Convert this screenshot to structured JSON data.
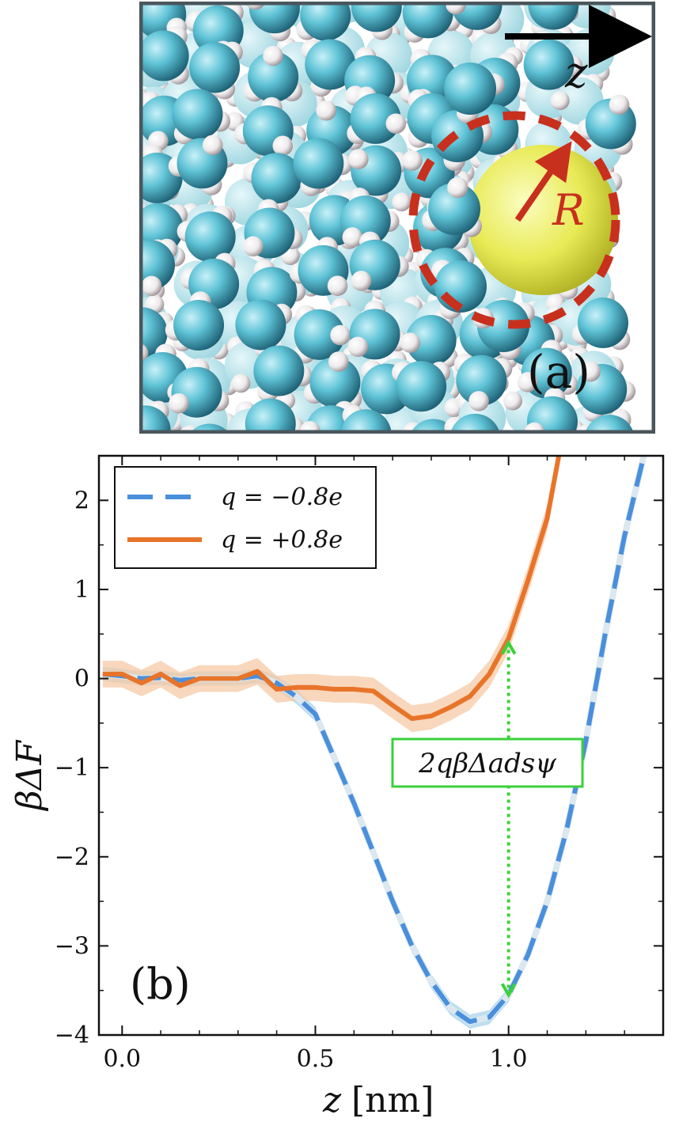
{
  "panel_a": {
    "label": "(a)",
    "axis_symbol": "z",
    "radius_symbol": "R",
    "colors": {
      "oxygen": "#5fc3d6",
      "hydrogen": "#ece9ea",
      "ion": "#e8ea55",
      "dashed_circle": "#c8301e",
      "frame": "#4a565c"
    }
  },
  "chart_data": {
    "type": "line",
    "panel_label": "(b)",
    "xlabel": "z",
    "xlabel_unit": "[nm]",
    "ylabel": "βΔF",
    "xlim": [
      -0.06,
      1.4
    ],
    "ylim": [
      -4,
      2.5
    ],
    "xticks": [
      0.0,
      0.5,
      1.0
    ],
    "xtick_labels": [
      "0.0",
      "0.5",
      "1.0"
    ],
    "yticks": [
      -4,
      -3,
      -2,
      -1,
      0,
      1,
      2
    ],
    "ytick_labels": [
      "−4",
      "−3",
      "−2",
      "−1",
      "0",
      "1",
      "2"
    ],
    "legend_placement": "top-left",
    "series": [
      {
        "name": "q = −0.8e",
        "color": "#4a8fdc",
        "band_color": "#a9d3ea",
        "style": "dashed",
        "x": [
          -0.05,
          0.0,
          0.05,
          0.1,
          0.15,
          0.2,
          0.25,
          0.3,
          0.35,
          0.4,
          0.45,
          0.5,
          0.55,
          0.6,
          0.65,
          0.7,
          0.75,
          0.8,
          0.85,
          0.9,
          0.95,
          1.0,
          1.05,
          1.1,
          1.15,
          1.2,
          1.25,
          1.3,
          1.35
        ],
        "y": [
          0.05,
          0.03,
          0.0,
          0.01,
          -0.02,
          0.0,
          0.0,
          0.0,
          0.03,
          -0.05,
          -0.2,
          -0.4,
          -0.9,
          -1.4,
          -1.95,
          -2.5,
          -3.0,
          -3.4,
          -3.7,
          -3.85,
          -3.8,
          -3.55,
          -3.1,
          -2.5,
          -1.7,
          -0.7,
          0.5,
          1.6,
          2.5
        ],
        "band_halfwidth": 0.08
      },
      {
        "name": "q = +0.8e",
        "color": "#e8742a",
        "band_color": "#f5c9a5",
        "style": "solid",
        "x": [
          -0.05,
          0.0,
          0.05,
          0.1,
          0.15,
          0.2,
          0.25,
          0.3,
          0.35,
          0.4,
          0.45,
          0.5,
          0.55,
          0.6,
          0.65,
          0.7,
          0.75,
          0.8,
          0.85,
          0.9,
          0.95,
          1.0,
          1.05,
          1.1,
          1.13
        ],
        "y": [
          0.05,
          0.05,
          -0.05,
          0.05,
          -0.08,
          0.0,
          0.0,
          0.0,
          0.08,
          -0.12,
          -0.1,
          -0.1,
          -0.12,
          -0.12,
          -0.14,
          -0.3,
          -0.45,
          -0.42,
          -0.32,
          -0.2,
          0.05,
          0.45,
          1.1,
          1.8,
          2.5
        ],
        "band_halfwidth": 0.15
      }
    ],
    "annotation": {
      "text": "2qβΔadsψ",
      "x": 1.0,
      "y_top": 0.4,
      "y_bottom": -3.55,
      "color": "#3bd13b"
    }
  }
}
